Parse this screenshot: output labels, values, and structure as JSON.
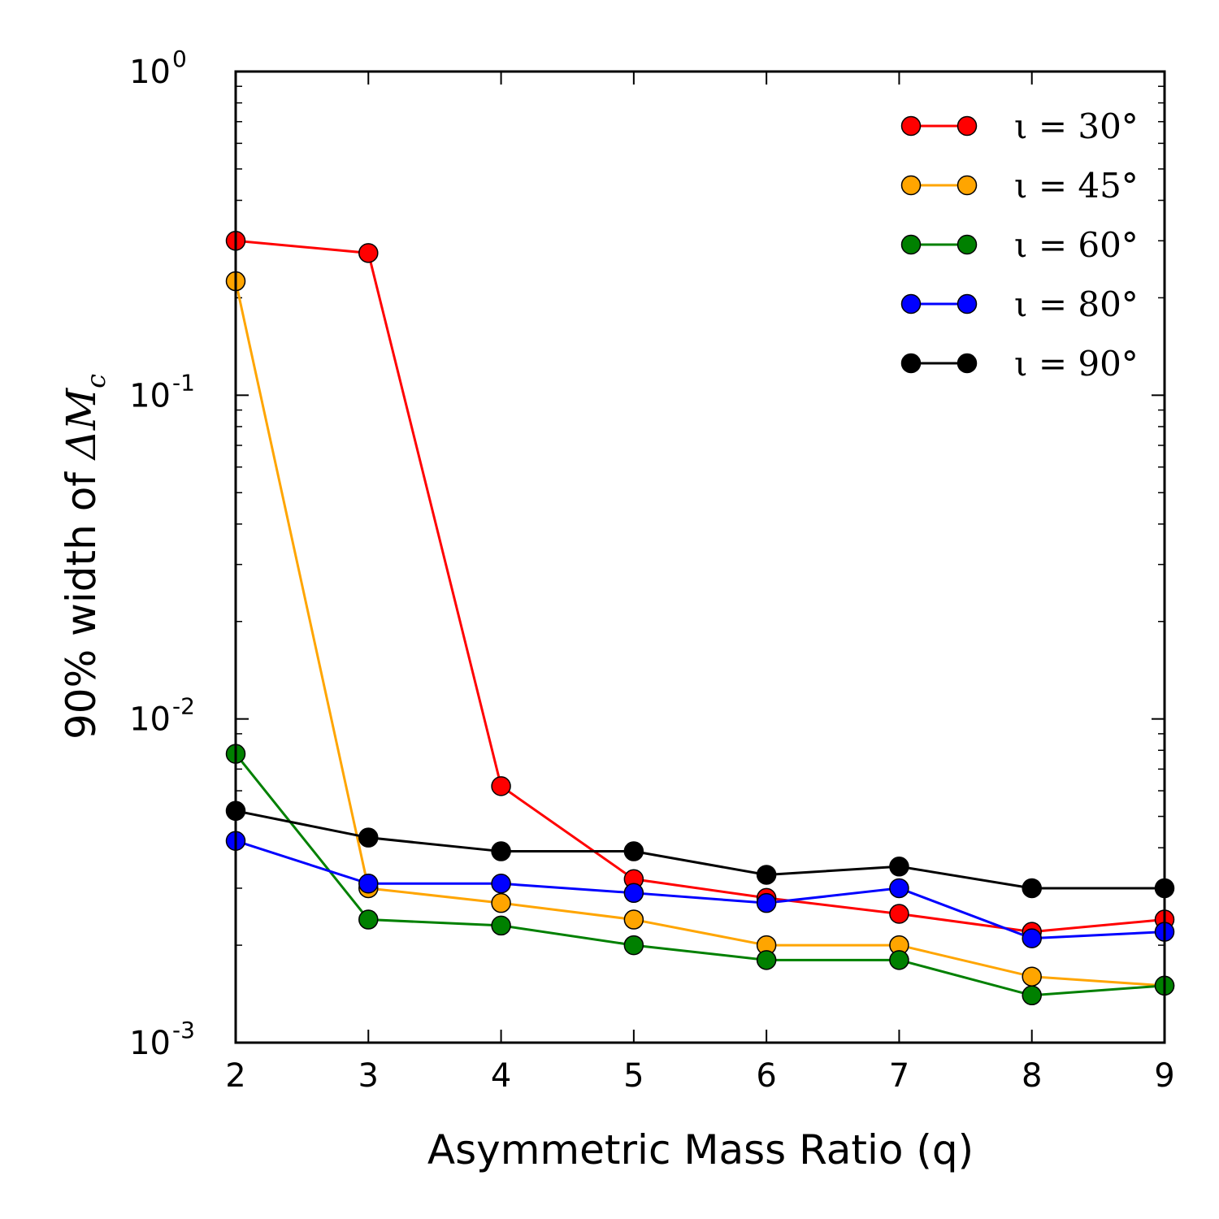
{
  "chart_data": {
    "type": "line",
    "xlabel": "Asymmetric Mass Ratio (q)",
    "ylabel_prefix": "90% width of ",
    "ylabel_math": "ΔM",
    "ylabel_sub": "c",
    "xlim": [
      2,
      9
    ],
    "ylim": [
      0.001,
      1
    ],
    "yscale": "log",
    "x_ticks": [
      "2",
      "3",
      "4",
      "5",
      "6",
      "7",
      "8",
      "9"
    ],
    "y_ticks": [
      {
        "base": "10",
        "exp": "-3",
        "value": 0.001
      },
      {
        "base": "10",
        "exp": "-2",
        "value": 0.01
      },
      {
        "base": "10",
        "exp": "-1",
        "value": 0.1
      },
      {
        "base": "10",
        "exp": "0",
        "value": 1
      }
    ],
    "legend_position": "top-right",
    "x": [
      2,
      3,
      4,
      5,
      6,
      7,
      8,
      9
    ],
    "series": [
      {
        "name": "ι = 30°",
        "color": "#ff0000",
        "values": [
          0.3,
          0.275,
          0.0062,
          0.0032,
          0.0028,
          0.0025,
          0.0022,
          0.0024
        ]
      },
      {
        "name": "ι = 45°",
        "color": "#ffa500",
        "values": [
          0.225,
          0.003,
          0.0027,
          0.0024,
          0.002,
          0.002,
          0.0016,
          0.0015
        ]
      },
      {
        "name": "ι = 60°",
        "color": "#008000",
        "values": [
          0.0078,
          0.0024,
          0.0023,
          0.002,
          0.0018,
          0.0018,
          0.0014,
          0.0015
        ]
      },
      {
        "name": "ι = 80°",
        "color": "#0000ff",
        "values": [
          0.0042,
          0.0031,
          0.0031,
          0.0029,
          0.0027,
          0.003,
          0.0021,
          0.0022
        ]
      },
      {
        "name": "ι = 90°",
        "color": "#000000",
        "values": [
          0.0052,
          0.0043,
          0.0039,
          0.0039,
          0.0033,
          0.0035,
          0.003,
          0.003
        ]
      }
    ]
  }
}
